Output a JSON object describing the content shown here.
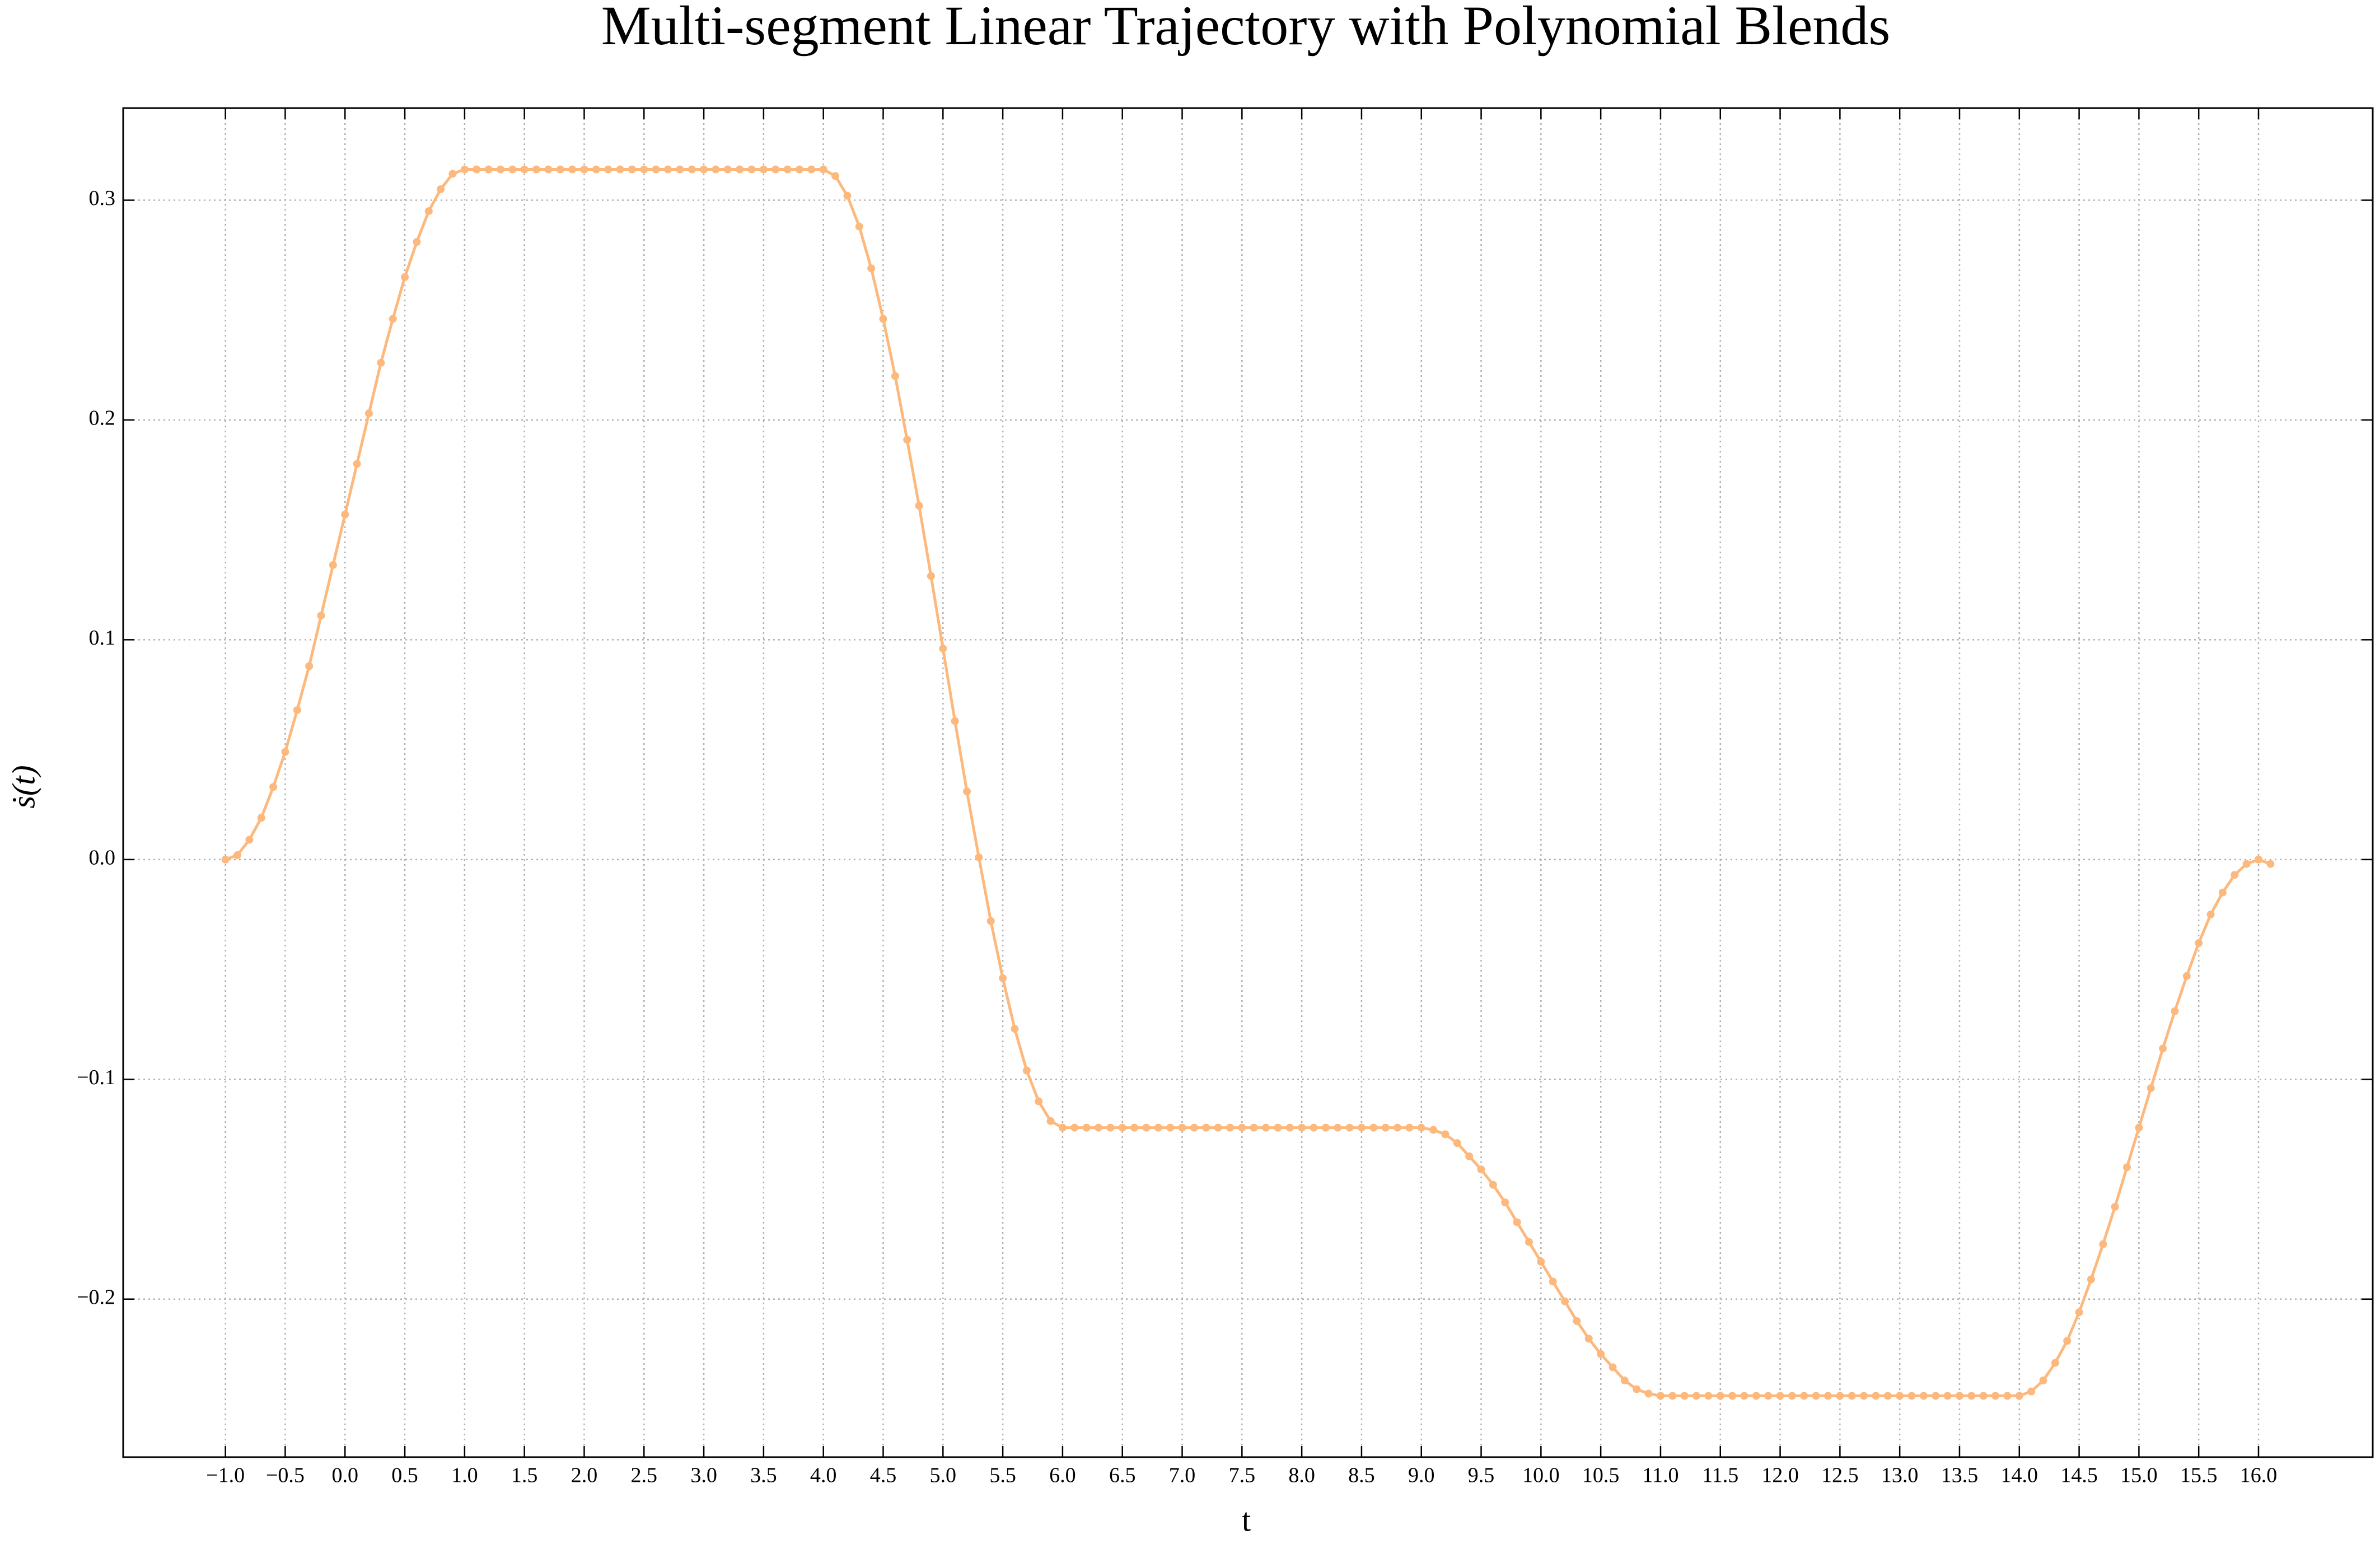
{
  "chart_data": {
    "type": "line",
    "title": "Multi-segment Linear Trajectory with Polynomial Blends",
    "xlabel": "t",
    "ylabel": "ṡ(t)",
    "color": "#fdb97d",
    "grid": true,
    "xlim": [
      -1.855,
      16.955
    ],
    "ylim": [
      -0.2719,
      0.3419
    ],
    "xticks": [
      {
        "value": -1,
        "label": "−1.0"
      },
      {
        "value": -0.5,
        "label": "−0.5"
      },
      {
        "value": 0,
        "label": "0.0"
      },
      0.5,
      {
        "value": 1,
        "label": "1.0"
      },
      1.5,
      {
        "value": 2,
        "label": "2.0"
      },
      2.5,
      {
        "value": 3,
        "label": "3.0"
      },
      3.5,
      {
        "value": 4,
        "label": "4.0"
      },
      4.5,
      {
        "value": 5,
        "label": "5.0"
      },
      5.5,
      {
        "value": 6,
        "label": "6.0"
      },
      6.5,
      {
        "value": 7,
        "label": "7.0"
      },
      7.5,
      {
        "value": 8,
        "label": "8.0"
      },
      8.5,
      {
        "value": 9,
        "label": "9.0"
      },
      9.5,
      {
        "value": 10,
        "label": "10.0"
      },
      10.5,
      {
        "value": 11,
        "label": "11.0"
      },
      11.5,
      {
        "value": 12,
        "label": "12.0"
      },
      12.5,
      {
        "value": 13,
        "label": "13.0"
      },
      13.5,
      {
        "value": 14,
        "label": "14.0"
      },
      14.5,
      {
        "value": 15,
        "label": "15.0"
      },
      15.5,
      {
        "value": 16,
        "label": "16.0"
      }
    ],
    "yticks": [
      {
        "value": -0.2,
        "label": "−0.2"
      },
      {
        "value": -0.1,
        "label": "−0.1"
      },
      {
        "value": 0,
        "label": "0.0"
      },
      0.1,
      0.2,
      0.3
    ],
    "x": [
      -1.0,
      -0.9,
      -0.8,
      -0.7,
      -0.6,
      -0.5,
      -0.4,
      -0.3,
      -0.2,
      -0.1,
      0.0,
      0.1,
      0.2,
      0.3,
      0.4,
      0.5,
      0.6,
      0.7,
      0.8,
      0.9,
      1.0,
      1.1,
      1.2,
      1.3,
      1.4,
      1.5,
      1.6,
      1.7,
      1.8,
      1.9,
      2.0,
      2.1,
      2.2,
      2.3,
      2.4,
      2.5,
      2.6,
      2.7,
      2.8,
      2.9,
      3.0,
      3.1,
      3.2,
      3.3,
      3.4,
      3.5,
      3.6,
      3.7,
      3.8,
      3.9,
      4.0,
      4.1,
      4.2,
      4.3,
      4.4,
      4.5,
      4.6,
      4.7,
      4.8,
      4.9,
      5.0,
      5.1,
      5.2,
      5.3,
      5.4,
      5.5,
      5.6,
      5.7,
      5.8,
      5.9,
      6.0,
      6.1,
      6.2,
      6.3,
      6.4,
      6.5,
      6.6,
      6.7,
      6.8,
      6.9,
      7.0,
      7.1,
      7.2,
      7.3,
      7.4,
      7.5,
      7.6,
      7.7,
      7.8,
      7.9,
      8.0,
      8.1,
      8.2,
      8.3,
      8.4,
      8.5,
      8.6,
      8.7,
      8.8,
      8.9,
      9.0,
      9.1,
      9.2,
      9.3,
      9.4,
      9.5,
      9.6,
      9.7,
      9.8,
      9.9,
      10.0,
      10.1,
      10.2,
      10.3,
      10.4,
      10.5,
      10.6,
      10.7,
      10.8,
      10.9,
      11.0,
      11.1,
      11.2,
      11.3,
      11.4,
      11.5,
      11.6,
      11.7,
      11.8,
      11.9,
      12.0,
      12.1,
      12.2,
      12.3,
      12.4,
      12.5,
      12.6,
      12.7,
      12.8,
      12.9,
      13.0,
      13.1,
      13.2,
      13.3,
      13.4,
      13.5,
      13.6,
      13.7,
      13.8,
      13.9,
      14.0,
      14.1,
      14.2,
      14.3,
      14.4,
      14.5,
      14.6,
      14.7,
      14.8,
      14.9,
      15.0,
      15.1,
      15.2,
      15.3,
      15.4,
      15.5,
      15.6,
      15.7,
      15.8,
      15.9,
      16.0,
      16.1
    ],
    "values": [
      0,
      0.002,
      0.009,
      0.019,
      0.033,
      0.049,
      0.068,
      0.088,
      0.111,
      0.134,
      0.157,
      0.18,
      0.203,
      0.226,
      0.246,
      0.265,
      0.281,
      0.295,
      0.305,
      0.312,
      0.314,
      0.314,
      0.314,
      0.314,
      0.314,
      0.314,
      0.314,
      0.314,
      0.314,
      0.314,
      0.314,
      0.314,
      0.314,
      0.314,
      0.314,
      0.314,
      0.314,
      0.314,
      0.314,
      0.314,
      0.314,
      0.314,
      0.314,
      0.314,
      0.314,
      0.314,
      0.314,
      0.314,
      0.314,
      0.314,
      0.314,
      0.311,
      0.302,
      0.288,
      0.269,
      0.246,
      0.22,
      0.191,
      0.161,
      0.129,
      0.096,
      0.063,
      0.031,
      0.001,
      -0.028,
      -0.054,
      -0.077,
      -0.096,
      -0.11,
      -0.119,
      -0.122,
      -0.122,
      -0.122,
      -0.122,
      -0.122,
      -0.122,
      -0.122,
      -0.122,
      -0.122,
      -0.122,
      -0.122,
      -0.122,
      -0.122,
      -0.122,
      -0.122,
      -0.122,
      -0.122,
      -0.122,
      -0.122,
      -0.122,
      -0.122,
      -0.122,
      -0.122,
      -0.122,
      -0.122,
      -0.122,
      -0.122,
      -0.122,
      -0.122,
      -0.122,
      -0.122,
      -0.123,
      -0.125,
      -0.129,
      -0.135,
      -0.141,
      -0.148,
      -0.156,
      -0.165,
      -0.174,
      -0.183,
      -0.192,
      -0.201,
      -0.21,
      -0.218,
      -0.225,
      -0.231,
      -0.237,
      -0.241,
      -0.243,
      -0.244,
      -0.244,
      -0.244,
      -0.244,
      -0.244,
      -0.244,
      -0.244,
      -0.244,
      -0.244,
      -0.244,
      -0.244,
      -0.244,
      -0.244,
      -0.244,
      -0.244,
      -0.244,
      -0.244,
      -0.244,
      -0.244,
      -0.244,
      -0.244,
      -0.244,
      -0.244,
      -0.244,
      -0.244,
      -0.244,
      -0.244,
      -0.244,
      -0.244,
      -0.244,
      -0.244,
      -0.242,
      -0.237,
      -0.229,
      -0.219,
      -0.206,
      -0.191,
      -0.175,
      -0.158,
      -0.14,
      -0.122,
      -0.104,
      -0.086,
      -0.069,
      -0.053,
      -0.038,
      -0.025,
      -0.015,
      -0.007,
      -0.002,
      0,
      -0.002
    ]
  }
}
